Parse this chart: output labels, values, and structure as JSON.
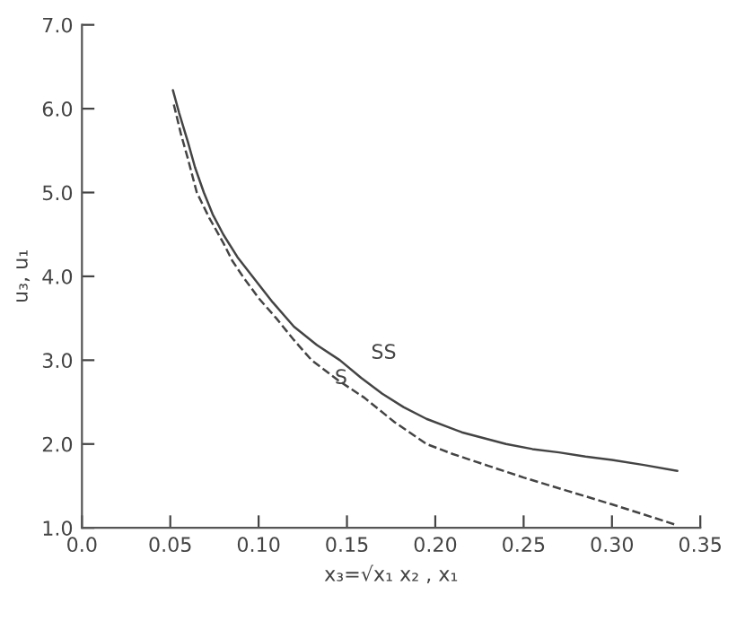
{
  "chart_data": {
    "type": "line",
    "xlabel": "x₃=√x₁ x₂ , x₁",
    "ylabel": "u₃, u₁",
    "xlim": [
      0.0,
      0.35
    ],
    "xticks": [
      {
        "value": 0.0,
        "label": "0.0"
      },
      0.05,
      {
        "value": 0.1,
        "label": "0.10"
      },
      0.15,
      {
        "value": 0.2,
        "label": "0.20"
      },
      0.25,
      {
        "value": 0.3,
        "label": "0.30"
      },
      0.35
    ],
    "ylim": [
      1.0,
      7.0
    ],
    "yticks": [
      {
        "value": 1.0,
        "label": "1.0"
      },
      {
        "value": 2.0,
        "label": "2.0"
      },
      {
        "value": 3.0,
        "label": "3.0"
      },
      {
        "value": 4.0,
        "label": "4.0"
      },
      {
        "value": 5.0,
        "label": "5.0"
      },
      {
        "value": 6.0,
        "label": "6.0"
      },
      {
        "value": 7.0,
        "label": "7.0"
      }
    ],
    "grid": false,
    "legend": false,
    "series": [
      {
        "name": "SS",
        "color": "#444444",
        "line_style": "solid",
        "x": [
          0.0515,
          0.055,
          0.06,
          0.064,
          0.069,
          0.074,
          0.08,
          0.088,
          0.0965,
          0.108,
          0.12,
          0.133,
          0.146,
          0.158,
          0.17,
          0.182,
          0.195,
          0.215,
          0.24,
          0.255,
          0.27,
          0.285,
          0.3,
          0.318,
          0.337
        ],
        "values": [
          6.22,
          5.95,
          5.6,
          5.3,
          5.0,
          4.74,
          4.5,
          4.23,
          4.0,
          3.69,
          3.4,
          3.18,
          3.0,
          2.79,
          2.6,
          2.44,
          2.3,
          2.14,
          2.0,
          1.94,
          1.9,
          1.85,
          1.81,
          1.75,
          1.68
        ]
      },
      {
        "name": "S",
        "color": "#444444",
        "line_style": "dashed",
        "x": [
          0.052,
          0.056,
          0.06,
          0.065,
          0.072,
          0.08,
          0.085,
          0.091,
          0.1,
          0.11,
          0.12,
          0.13,
          0.145,
          0.16,
          0.177,
          0.195,
          0.21,
          0.23,
          0.25,
          0.275,
          0.3,
          0.318,
          0.337
        ],
        "values": [
          6.05,
          5.7,
          5.4,
          5.0,
          4.7,
          4.4,
          4.19,
          4.0,
          3.74,
          3.5,
          3.24,
          3.0,
          2.76,
          2.55,
          2.26,
          2.0,
          1.88,
          1.74,
          1.6,
          1.44,
          1.28,
          1.16,
          1.03
        ]
      }
    ]
  }
}
